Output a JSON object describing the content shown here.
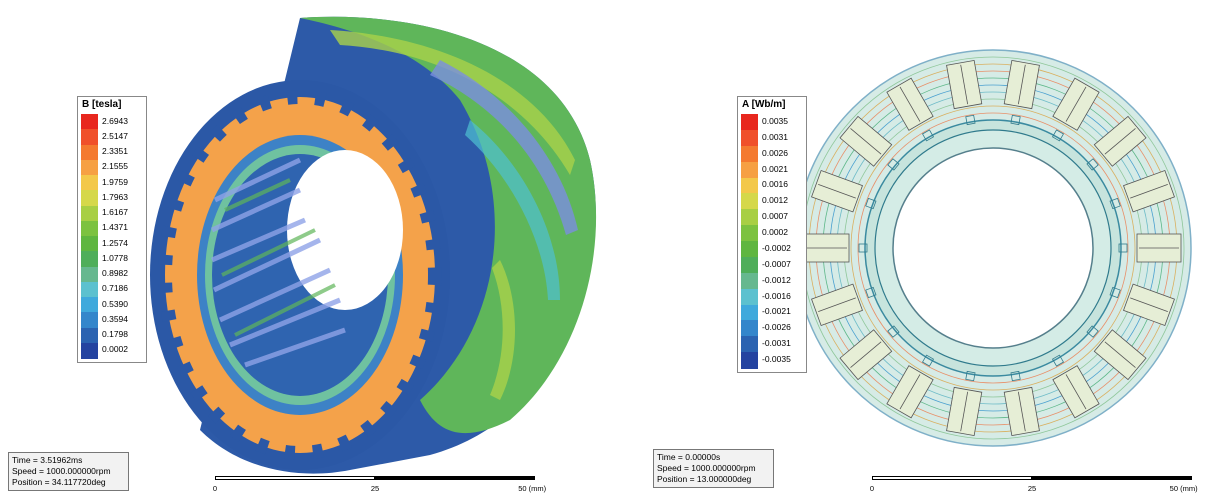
{
  "left_view": {
    "legend": {
      "title": "B [tesla]",
      "labels": [
        "2.6943",
        "2.5147",
        "2.3351",
        "2.1555",
        "1.9759",
        "1.7963",
        "1.6167",
        "1.4371",
        "1.2574",
        "1.0778",
        "0.8982",
        "0.7186",
        "0.5390",
        "0.3594",
        "0.1798",
        "0.0002"
      ],
      "colors": [
        "#e8271e",
        "#f0502a",
        "#f47a2f",
        "#f6a043",
        "#f3c84a",
        "#d5d84a",
        "#a8cf44",
        "#7cc240",
        "#5fb640",
        "#4fae5a",
        "#66b88f",
        "#5cc1cf",
        "#3fa9dc",
        "#3486cb",
        "#2b63b1",
        "#2443a0"
      ]
    },
    "info": {
      "time": "Time    =  3.51962ms",
      "speed": "Speed   = 1000.000000rpm",
      "position": "Position = 34.117720deg"
    },
    "scale": {
      "tick_0": "0",
      "tick_25": "25",
      "tick_50": "50 (mm)"
    }
  },
  "right_view": {
    "legend": {
      "title": "A [Wb/m]",
      "labels": [
        "0.0035",
        "0.0031",
        "0.0026",
        "0.0021",
        "0.0016",
        "0.0012",
        "0.0007",
        "0.0002",
        "-0.0002",
        "-0.0007",
        "-0.0012",
        "-0.0016",
        "-0.0021",
        "-0.0026",
        "-0.0031",
        "-0.0035"
      ],
      "colors": [
        "#e8271e",
        "#f0502a",
        "#f47a2f",
        "#f6a043",
        "#f3c84a",
        "#d5d84a",
        "#a8cf44",
        "#7cc240",
        "#5fb640",
        "#4fae5a",
        "#66b88f",
        "#5cc1cf",
        "#3fa9dc",
        "#3486cb",
        "#2b63b1",
        "#2443a0"
      ]
    },
    "info": {
      "time": "Time    =  0.00000s",
      "speed": "Speed   = 1000.000000rpm",
      "position": "Position = 13.000000deg"
    },
    "scale": {
      "tick_0": "0",
      "tick_25": "25",
      "tick_50": "50 (mm)"
    }
  }
}
